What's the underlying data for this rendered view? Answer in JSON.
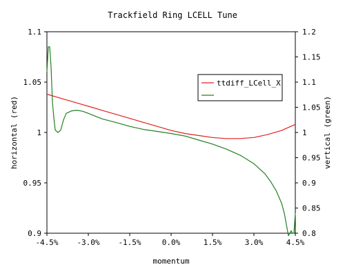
{
  "chart_data": {
    "type": "line",
    "title": "Trackfield Ring LCELL Tune",
    "xlabel": "momentum",
    "ylabel_left": "horizontal (red)",
    "ylabel_right": "vertical (green)",
    "x_ticks": [
      "-4.5%",
      "-3.0%",
      "-1.5%",
      "0.0%",
      "1.5%",
      "3.0%",
      "4.5%"
    ],
    "xlim": [
      -4.5,
      4.5
    ],
    "y_left_ticks": [
      "0.9",
      "0.95",
      "1",
      "1.05",
      "1.1"
    ],
    "ylim_left": [
      0.9,
      1.1
    ],
    "y_right_ticks": [
      "0.8",
      "0.85",
      "0.9",
      "0.95",
      "1",
      "1.05",
      "1.1",
      "1.15",
      "1.2"
    ],
    "ylim_right": [
      0.8,
      1.2
    ],
    "grid": false,
    "legend_position": "right",
    "series": [
      {
        "name": "ttdiff_LCell_X",
        "axis": "left",
        "color": "#e02020",
        "x": [
          -4.5,
          -4.0,
          -3.5,
          -3.0,
          -2.5,
          -2.0,
          -1.5,
          -1.0,
          -0.5,
          0.0,
          0.5,
          1.0,
          1.5,
          2.0,
          2.5,
          3.0,
          3.5,
          4.0,
          4.5
        ],
        "y": [
          1.038,
          1.034,
          1.03,
          1.026,
          1.022,
          1.018,
          1.014,
          1.01,
          1.006,
          1.002,
          0.999,
          0.997,
          0.995,
          0.994,
          0.994,
          0.995,
          0.998,
          1.002,
          1.008
        ]
      },
      {
        "name": "",
        "axis": "right",
        "color": "#208020",
        "x": [
          -4.5,
          -4.45,
          -4.4,
          -4.35,
          -4.3,
          -4.25,
          -4.2,
          -4.1,
          -4.0,
          -3.9,
          -3.8,
          -3.6,
          -3.4,
          -3.2,
          -3.0,
          -2.5,
          -2.0,
          -1.5,
          -1.0,
          -0.5,
          0.0,
          0.5,
          1.0,
          1.5,
          2.0,
          2.5,
          3.0,
          3.2,
          3.4,
          3.6,
          3.8,
          4.0,
          4.1,
          4.2,
          4.25,
          4.3,
          4.35,
          4.4,
          4.45,
          4.5
        ],
        "y": [
          1.12,
          1.17,
          1.17,
          1.13,
          1.06,
          1.03,
          1.005,
          1.0,
          1.005,
          1.025,
          1.038,
          1.043,
          1.044,
          1.042,
          1.038,
          1.027,
          1.02,
          1.012,
          1.006,
          1.002,
          0.998,
          0.993,
          0.985,
          0.977,
          0.967,
          0.955,
          0.938,
          0.928,
          0.918,
          0.903,
          0.885,
          0.86,
          0.84,
          0.81,
          0.795,
          0.8,
          0.805,
          0.8,
          0.8,
          0.84
        ]
      }
    ]
  }
}
